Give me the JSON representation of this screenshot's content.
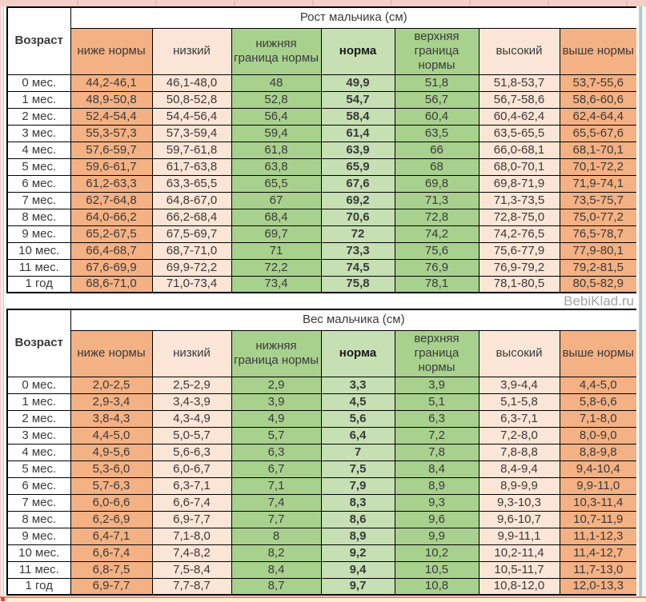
{
  "watermark": "BebiKlad.ru",
  "colors": {
    "orange": "#F4B183",
    "peach": "#FBE5D6",
    "green_medium": "#A9D18E",
    "green_light": "#C6E0B4",
    "border": "#000000",
    "edge_pink": "#F6CEC8",
    "edge_teal": "#87D6D2",
    "edge_yellow": "#FCF0CD"
  },
  "tables": [
    {
      "id": "height",
      "title": "Рост мальчика (см)",
      "age_header": "Возраст",
      "columns": [
        "ниже нормы",
        "низкий",
        "нижняя граница нормы",
        "норма",
        "верхняя граница нормы",
        "высокий",
        "выше нормы"
      ],
      "rows": [
        {
          "age": "0 мес.",
          "cells": [
            "44,2-46,1",
            "46,1-48,0",
            "48",
            "49,9",
            "51,8",
            "51,8-53,7",
            "53,7-55,6"
          ]
        },
        {
          "age": "1 мес.",
          "cells": [
            "48,9-50,8",
            "50,8-52,8",
            "52,8",
            "54,7",
            "56,7",
            "56,7-58,6",
            "58,6-60,6"
          ]
        },
        {
          "age": "2 мес.",
          "cells": [
            "52,4-54,4",
            "54,4-56,4",
            "56,4",
            "58,4",
            "60,4",
            "60,4-62,4",
            "62,4-64,4"
          ]
        },
        {
          "age": "3 мес.",
          "cells": [
            "55,3-57,3",
            "57,3-59,4",
            "59,4",
            "61,4",
            "63,5",
            "63,5-65,5",
            "65,5-67,6"
          ]
        },
        {
          "age": "4 мес.",
          "cells": [
            "57,6-59,7",
            "59,7-61,8",
            "61,8",
            "63,9",
            "66",
            "66,0-68,1",
            "68,1-70,1"
          ]
        },
        {
          "age": "5 мес.",
          "cells": [
            "59,6-61,7",
            "61,7-63,8",
            "63,8",
            "65,9",
            "68",
            "68,0-70,1",
            "70,1-72,2"
          ]
        },
        {
          "age": "6 мес.",
          "cells": [
            "61,2-63,3",
            "63,3-65,5",
            "65,5",
            "67,6",
            "69,8",
            "69,8-71,9",
            "71,9-74,1"
          ]
        },
        {
          "age": "7 мес.",
          "cells": [
            "62,7-64,8",
            "64,8-67,0",
            "67",
            "69,2",
            "71,3",
            "71,3-73,5",
            "73,5-75,7"
          ]
        },
        {
          "age": "8 мес.",
          "cells": [
            "64,0-66,2",
            "66,2-68,4",
            "68,4",
            "70,6",
            "72,8",
            "72,8-75,0",
            "75,0-77,2"
          ]
        },
        {
          "age": "9 мес.",
          "cells": [
            "65,2-67,5",
            "67,5-69,7",
            "69,7",
            "72",
            "74,2",
            "74,2-76,5",
            "76,5-78,7"
          ]
        },
        {
          "age": "10 мес.",
          "cells": [
            "66,4-68,7",
            "68,7-71,0",
            "71",
            "73,3",
            "75,6",
            "75,6-77,9",
            "77,9-80,1"
          ]
        },
        {
          "age": "11 мес.",
          "cells": [
            "67,6-69,9",
            "69,9-72,2",
            "72,2",
            "74,5",
            "76,9",
            "76,9-79,2",
            "79,2-81,5"
          ]
        },
        {
          "age": "1 год",
          "cells": [
            "68,6-71,0",
            "71,0-73,4",
            "73,4",
            "75,8",
            "78,1",
            "78,1-80,5",
            "80,5-82,9"
          ]
        }
      ]
    },
    {
      "id": "weight",
      "title": "Вес мальчика (см)",
      "age_header": "Возраст",
      "columns": [
        "ниже нормы",
        "низкий",
        "нижняя граница нормы",
        "норма",
        "верхняя граница нормы",
        "высокий",
        "выше нормы"
      ],
      "rows": [
        {
          "age": "0 мес.",
          "cells": [
            "2,0-2,5",
            "2,5-2,9",
            "2,9",
            "3,3",
            "3,9",
            "3,9-4,4",
            "4,4-5,0"
          ]
        },
        {
          "age": "1 мес.",
          "cells": [
            "2,9-3,4",
            "3,4-3,9",
            "3,9",
            "4,5",
            "5,1",
            "5,1-5,8",
            "5,8-6,6"
          ]
        },
        {
          "age": "2 мес.",
          "cells": [
            "3,8-4,3",
            "4,3-4,9",
            "4,9",
            "5,6",
            "6,3",
            "6,3-7,1",
            "7,1-8,0"
          ]
        },
        {
          "age": "3 мес.",
          "cells": [
            "4,4-5,0",
            "5,0-5,7",
            "5,7",
            "6,4",
            "7,2",
            "7,2-8,0",
            "8,0-9,0"
          ]
        },
        {
          "age": "4 мес.",
          "cells": [
            "4,9-5,6",
            "5,6-6,3",
            "6,3",
            "7",
            "7,8",
            "7,8-8,8",
            "8,8-9,8"
          ]
        },
        {
          "age": "5 мес.",
          "cells": [
            "5,3-6,0",
            "6,0-6,7",
            "6,7",
            "7,5",
            "8,4",
            "8,4-9,4",
            "9,4-10,4"
          ]
        },
        {
          "age": "6 мес.",
          "cells": [
            "5,7-6,3",
            "6,3-7,1",
            "7,1",
            "7,9",
            "8,9",
            "8,9-9,9",
            "9,9-11,0"
          ]
        },
        {
          "age": "7 мес.",
          "cells": [
            "6,0-6,6",
            "6,6-7,4",
            "7,4",
            "8,3",
            "9,3",
            "9,3-10,3",
            "10,3-11,4"
          ]
        },
        {
          "age": "8 мес.",
          "cells": [
            "6,2-6,9",
            "6,9-7,7",
            "7,7",
            "8,6",
            "9,6",
            "9,6-10,7",
            "10,7-11,9"
          ]
        },
        {
          "age": "9 мес.",
          "cells": [
            "6,4-7,1",
            "7,1-8,0",
            "8",
            "8,9",
            "9,9",
            "9,9-11,1",
            "11,1-12,3"
          ]
        },
        {
          "age": "10 мес.",
          "cells": [
            "6,6-7,4",
            "7,4-8,2",
            "8,2",
            "9,2",
            "10,2",
            "10,2-11,4",
            "11,4-12,7"
          ]
        },
        {
          "age": "11 мес.",
          "cells": [
            "6,8-7,5",
            "7,5-8,4",
            "8,4",
            "9,4",
            "10,5",
            "10,5-11,7",
            "11,7-13,0"
          ]
        },
        {
          "age": "1 год",
          "cells": [
            "6,9-7,7",
            "7,7-8,7",
            "8,7",
            "9,7",
            "10,8",
            "10,8-12,0",
            "12,0-13,3"
          ]
        }
      ]
    }
  ]
}
